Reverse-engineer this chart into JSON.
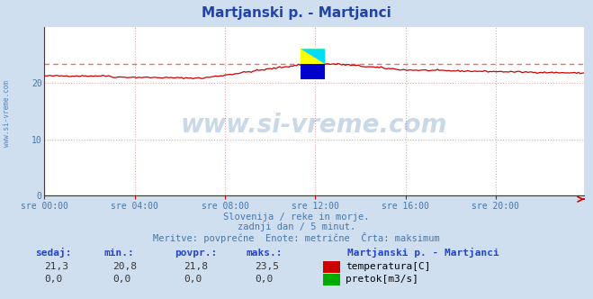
{
  "title": "Martjanski p. - Martjanci",
  "title_color": "#2244aa",
  "bg_color": "#d0dff0",
  "plot_bg_color": "#ffffff",
  "grid_color_h": "#ddaaaa",
  "grid_color_v": "#ddaaaa",
  "axis_color": "#cc0000",
  "tick_label_color": "#4477aa",
  "x_tick_labels": [
    "sre 00:00",
    "sre 04:00",
    "sre 08:00",
    "sre 12:00",
    "sre 16:00",
    "sre 20:00"
  ],
  "x_tick_positions": [
    0,
    48,
    96,
    144,
    192,
    240
  ],
  "ylim": [
    0,
    30
  ],
  "yticks": [
    0,
    10,
    20
  ],
  "total_points": 288,
  "temp_max": 23.5,
  "subtitle1": "Slovenija / reke in morje.",
  "subtitle2": "zadnji dan / 5 minut.",
  "subtitle3": "Meritve: povprečne  Enote: metrične  Črta: maksimum",
  "subtitle_color": "#4477aa",
  "label_header": "Martjanski p. - Martjanci",
  "label_header_color": "#2244cc",
  "label_temp": "temperatura[C]",
  "label_flow": "pretok[m3/s]",
  "label_color": "#000000",
  "col_sedaj": "sedaj:",
  "col_min": "min.:",
  "col_povpr": "povpr.:",
  "col_maks": "maks.:",
  "col_color": "#2244cc",
  "temp_vals": [
    "21,3",
    "20,8",
    "21,8",
    "23,5"
  ],
  "flow_vals": [
    "0,0",
    "0,0",
    "0,0",
    "0,0"
  ],
  "temp_line_color": "#cc0000",
  "flow_line_color": "#00aa00",
  "max_line_color": "#ff6666",
  "watermark": "www.si-vreme.com",
  "watermark_color": "#4477aa",
  "side_label": "www.si-vreme.com",
  "side_label_color": "#4477aa",
  "logo_yellow": "#ffff00",
  "logo_cyan": "#00ddff",
  "logo_blue": "#0000cc"
}
